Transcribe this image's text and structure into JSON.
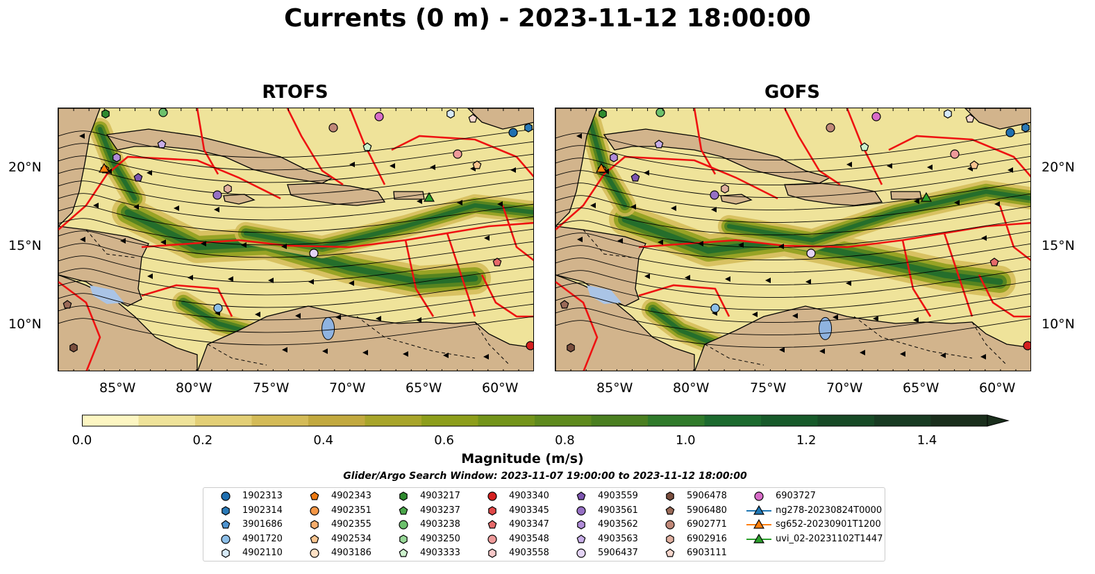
{
  "title": "Currents (0 m) - 2023-11-12 18:00:00",
  "panels": [
    {
      "title": "RTOFS"
    },
    {
      "title": "GOFS"
    }
  ],
  "axes": {
    "lat_labels": [
      "20°N",
      "15°N",
      "10°N"
    ],
    "lon_labels": [
      "85°W",
      "80°W",
      "75°W",
      "70°W",
      "65°W",
      "60°W"
    ]
  },
  "colorbar": {
    "label": "Magnitude (m/s)",
    "ticks": [
      "0.0",
      "0.2",
      "0.4",
      "0.6",
      "0.8",
      "1.0",
      "1.2",
      "1.4"
    ],
    "range": [
      0.0,
      1.5
    ],
    "colors": [
      "#fdf6c2",
      "#efe39a",
      "#e3cf76",
      "#d4bb57",
      "#c2a93f",
      "#a8a52a",
      "#8d9e1b",
      "#73941a",
      "#5e8a1d",
      "#4a7f20",
      "#2f7a2a",
      "#1c6a2e",
      "#175a2a",
      "#174a26",
      "#183b22",
      "#1a2e1c"
    ]
  },
  "search_window": "Glider/Argo Search Window: 2023-11-07 19:00:00 to 2023-11-12 18:00:00",
  "legend": [
    {
      "label": "1902313",
      "marker": "circle",
      "color": "#1f6fb0"
    },
    {
      "label": "1902314",
      "marker": "hexagon",
      "color": "#2a7ab8"
    },
    {
      "label": "3901686",
      "marker": "pentagon",
      "color": "#4f94d0"
    },
    {
      "label": "4901720",
      "marker": "circle",
      "color": "#8dbfe8"
    },
    {
      "label": "4902110",
      "marker": "hexagon",
      "color": "#d6e9f8"
    },
    {
      "label": "4902343",
      "marker": "pentagon",
      "color": "#ee7a12"
    },
    {
      "label": "4902351",
      "marker": "circle",
      "color": "#f59746"
    },
    {
      "label": "4902355",
      "marker": "hexagon",
      "color": "#f7ad6c"
    },
    {
      "label": "4902534",
      "marker": "pentagon",
      "color": "#fac590"
    },
    {
      "label": "4903186",
      "marker": "circle",
      "color": "#fde0c4"
    },
    {
      "label": "4903217",
      "marker": "hexagon",
      "color": "#2e8a2e"
    },
    {
      "label": "4903237",
      "marker": "pentagon",
      "color": "#4aa64a"
    },
    {
      "label": "4903238",
      "marker": "circle",
      "color": "#6cc06c"
    },
    {
      "label": "4903250",
      "marker": "hexagon",
      "color": "#98d898"
    },
    {
      "label": "4903333",
      "marker": "pentagon",
      "color": "#cdf2cd"
    },
    {
      "label": "4903340",
      "marker": "circle",
      "color": "#d42020"
    },
    {
      "label": "4903345",
      "marker": "hexagon",
      "color": "#e04848"
    },
    {
      "label": "4903347",
      "marker": "pentagon",
      "color": "#e66a6a"
    },
    {
      "label": "4903548",
      "marker": "circle",
      "color": "#ee9a9a"
    },
    {
      "label": "4903558",
      "marker": "hexagon",
      "color": "#f7c8c8"
    },
    {
      "label": "4903559",
      "marker": "pentagon",
      "color": "#7d55b0"
    },
    {
      "label": "4903561",
      "marker": "circle",
      "color": "#9670c4"
    },
    {
      "label": "4903562",
      "marker": "hexagon",
      "color": "#b08cd8"
    },
    {
      "label": "4903563",
      "marker": "pentagon",
      "color": "#c8aee8"
    },
    {
      "label": "5906437",
      "marker": "circle",
      "color": "#e4d4f6"
    },
    {
      "label": "5906478",
      "marker": "hexagon",
      "color": "#7a4e3e"
    },
    {
      "label": "5906480",
      "marker": "pentagon",
      "color": "#9a6a58"
    },
    {
      "label": "6902771",
      "marker": "circle",
      "color": "#c08878"
    },
    {
      "label": "6902916",
      "marker": "hexagon",
      "color": "#e0b0a0"
    },
    {
      "label": "6903111",
      "marker": "pentagon",
      "color": "#f6d6cc"
    },
    {
      "label": "6903727",
      "marker": "circle",
      "color": "#d86cc8"
    },
    {
      "label": "ng278-20230824T0000",
      "marker": "triangle-line",
      "color": "#1f77b4"
    },
    {
      "label": "sg652-20230901T1200",
      "marker": "triangle-line",
      "color": "#ff7f0e"
    },
    {
      "label": "uvi_02-20231102T1447",
      "marker": "triangle-line",
      "color": "#2ca02c"
    }
  ]
}
